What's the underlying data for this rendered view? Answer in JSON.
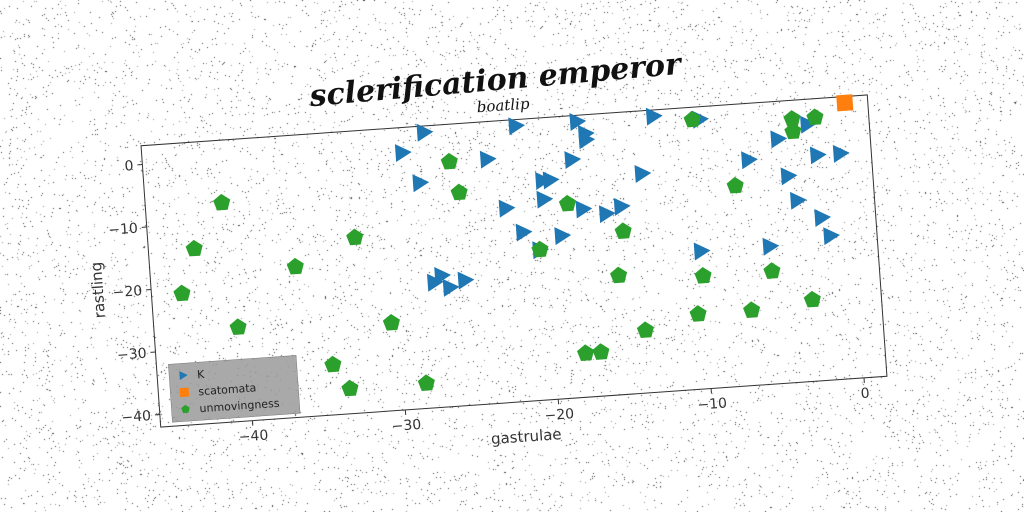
{
  "chart_data": {
    "type": "scatter",
    "title": "sclerification emperor",
    "subtitle": "boatlip",
    "xlabel": "gastrulae",
    "ylabel": "rastling",
    "xlim": [
      -46,
      1.5
    ],
    "ylim": [
      -42,
      3
    ],
    "xticks": [
      -40,
      -30,
      -20,
      -10,
      0
    ],
    "yticks": [
      0,
      -10,
      -20,
      -30,
      -40
    ],
    "grid": false,
    "legend_position": "lower-left",
    "series": [
      {
        "name": "K",
        "marker": "triangle-right",
        "color": "#1f77b4",
        "points": [
          [
            -29,
            -1
          ],
          [
            -27.5,
            2
          ],
          [
            -28,
            -6
          ],
          [
            -23.5,
            -3
          ],
          [
            -20,
            -7
          ],
          [
            -19.5,
            -7
          ],
          [
            -18,
            -4
          ],
          [
            -17.5,
            2
          ],
          [
            -17,
            0
          ],
          [
            -17,
            -1
          ],
          [
            -21.5,
            2
          ],
          [
            -12.5,
            2
          ],
          [
            -9.5,
            1
          ],
          [
            -4.5,
            -3
          ],
          [
            -2.5,
            -1
          ],
          [
            -2,
            -6
          ],
          [
            -0.5,
            -6
          ],
          [
            -4,
            -9
          ],
          [
            -6.5,
            -6
          ],
          [
            -3.5,
            -13
          ],
          [
            -2,
            -16
          ],
          [
            -1.5,
            -19
          ],
          [
            -5.5,
            -20
          ],
          [
            -10,
            -20
          ],
          [
            -13.5,
            -7
          ],
          [
            -15,
            -12
          ],
          [
            -16,
            -13
          ],
          [
            -17.5,
            -12
          ],
          [
            -19,
            -16
          ],
          [
            -20.5,
            -18
          ],
          [
            -21.5,
            -15
          ],
          [
            -22.5,
            -11
          ],
          [
            -20,
            -10
          ],
          [
            -27,
            -21
          ],
          [
            -27.5,
            -22
          ],
          [
            -26.5,
            -23
          ],
          [
            -25.5,
            -22
          ]
        ]
      },
      {
        "name": "scatomata",
        "marker": "square",
        "color": "#ff7f0e",
        "points": [
          [
            0,
            2
          ]
        ]
      },
      {
        "name": "unmovingness",
        "marker": "pentagon",
        "color": "#2ca02c",
        "points": [
          [
            -41,
            -7
          ],
          [
            -43,
            -14
          ],
          [
            -44,
            -21
          ],
          [
            -40.5,
            -27
          ],
          [
            -36.5,
            -18
          ],
          [
            -32.5,
            -14
          ],
          [
            -30.5,
            -28
          ],
          [
            -34.5,
            -34
          ],
          [
            -33.5,
            -38
          ],
          [
            -28.5,
            -38
          ],
          [
            -26,
            -3
          ],
          [
            -25.5,
            -8
          ],
          [
            -20.5,
            -18
          ],
          [
            -18.5,
            -11
          ],
          [
            -15,
            -16
          ],
          [
            -15.5,
            -23
          ],
          [
            -17,
            -35
          ],
          [
            -18,
            -35
          ],
          [
            -14,
            -32
          ],
          [
            -10.5,
            -30
          ],
          [
            -10,
            -24
          ],
          [
            -7,
            -30
          ],
          [
            -5.5,
            -24
          ],
          [
            -7.5,
            -10
          ],
          [
            -3,
            -29
          ],
          [
            -3.5,
            -2
          ],
          [
            -2,
            0
          ],
          [
            -3.5,
            0
          ],
          [
            -10,
            1
          ]
        ]
      }
    ]
  }
}
